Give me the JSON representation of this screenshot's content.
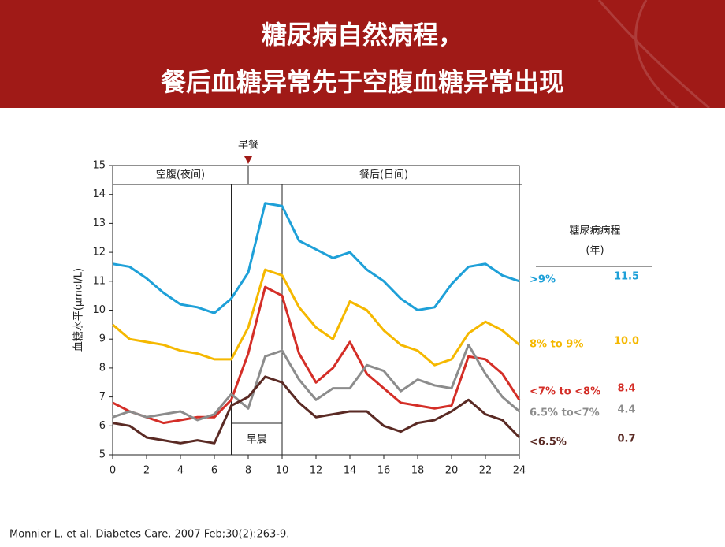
{
  "chart_data": {
    "type": "line",
    "title": [
      "糖尿病自然病程，",
      "餐后血糖异常先于空腹血糖异常出现"
    ],
    "y_label": "血糖水平(μmol/L)",
    "x": [
      0,
      1,
      2,
      3,
      4,
      5,
      6,
      7,
      8,
      9,
      10,
      11,
      12,
      13,
      14,
      15,
      16,
      17,
      18,
      19,
      20,
      21,
      22,
      23,
      24
    ],
    "xlim": [
      0,
      24
    ],
    "xticks": [
      0,
      2,
      4,
      6,
      8,
      10,
      12,
      14,
      16,
      18,
      20,
      22,
      24
    ],
    "ylim": [
      5,
      15
    ],
    "yticks": [
      5,
      6,
      7,
      8,
      9,
      10,
      11,
      12,
      13,
      14,
      15
    ],
    "series": [
      {
        "name": ">9%",
        "color": "#1ea0d8",
        "values": [
          11.6,
          11.5,
          11.1,
          10.6,
          10.2,
          10.1,
          9.9,
          10.4,
          11.3,
          13.7,
          13.6,
          12.4,
          12.1,
          11.8,
          12.0,
          11.4,
          11.0,
          10.4,
          10.0,
          10.1,
          10.9,
          11.5,
          11.6,
          11.2,
          11.0
        ]
      },
      {
        "name": "8% to 9%",
        "color": "#f5b800",
        "values": [
          9.5,
          9.0,
          8.9,
          8.8,
          8.6,
          8.5,
          8.3,
          8.3,
          9.4,
          11.4,
          11.2,
          10.1,
          9.4,
          9.0,
          10.3,
          10.0,
          9.3,
          8.8,
          8.6,
          8.1,
          8.3,
          9.2,
          9.6,
          9.3,
          8.8
        ]
      },
      {
        "name": "<7% to <8%",
        "color": "#d42e27",
        "values": [
          6.8,
          6.5,
          6.3,
          6.1,
          6.2,
          6.3,
          6.3,
          6.9,
          8.5,
          10.8,
          10.5,
          8.5,
          7.5,
          8.0,
          8.9,
          7.8,
          7.3,
          6.8,
          6.7,
          6.6,
          6.7,
          8.4,
          8.3,
          7.8,
          6.9
        ]
      },
      {
        "name": "6.5% to<7%",
        "color": "#8c8c8c",
        "values": [
          6.3,
          6.5,
          6.3,
          6.4,
          6.5,
          6.2,
          6.4,
          7.1,
          6.6,
          8.4,
          8.6,
          7.6,
          6.9,
          7.3,
          7.3,
          8.1,
          7.9,
          7.2,
          7.6,
          7.4,
          7.3,
          8.8,
          7.8,
          7.0,
          6.5
        ]
      },
      {
        "name": "<6.5%",
        "color": "#5a2a24",
        "values": [
          6.1,
          6.0,
          5.6,
          5.5,
          5.4,
          5.5,
          5.4,
          6.7,
          7.0,
          7.7,
          7.5,
          6.8,
          6.3,
          6.4,
          6.5,
          6.5,
          6.0,
          5.8,
          6.1,
          6.2,
          6.5,
          6.9,
          6.4,
          6.2,
          5.6
        ]
      }
    ],
    "dividers": [
      7,
      10
    ],
    "annotations": [
      {
        "text": "早餐",
        "x": 8
      },
      {
        "text": "空腹(夜间)"
      },
      {
        "text": "餐后(日间)"
      },
      {
        "text": "早晨"
      }
    ],
    "duration_table": {
      "title": "糖尿病病程",
      "unit": "(年)",
      "values": [
        "11.5",
        "10.0",
        "8.4",
        "4.4",
        "0.7"
      ]
    }
  },
  "citation": "Monnier L, et al. Diabetes Care. 2007 Feb;30(2):263-9."
}
